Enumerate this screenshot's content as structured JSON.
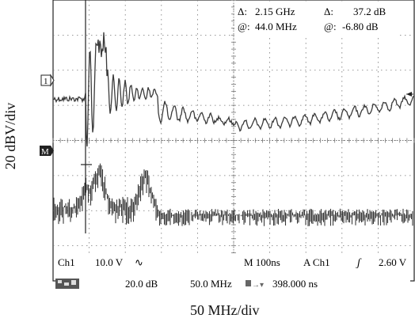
{
  "y_axis_label": "20 dBV/div",
  "x_axis_label": "50 MHz/div",
  "cursor_readout": {
    "delta_symbol": "Δ:",
    "at_symbol": "@:",
    "delta_freq": "2.15 GHz",
    "delta_level": "37.2 dB",
    "at_freq": "44.0 MHz",
    "at_level": "-6.80 dB"
  },
  "markers": {
    "channel1": "1",
    "math": "M"
  },
  "status_bar": {
    "channel": "Ch1",
    "volts_per_div": "10.0 V",
    "coupling_symbol": "∿",
    "timebase": "M 100ns",
    "trigger": "A  Ch1",
    "trigger_slope_symbol": "ʃ",
    "trigger_level": "2.60 V",
    "math_scale": "20.0 dB",
    "math_span": "50.0 MHz",
    "cursor_time": "398.000 ns"
  },
  "colors": {
    "trace": "#3a3a3a",
    "grid": "#777777",
    "background": "#ffffff"
  }
}
